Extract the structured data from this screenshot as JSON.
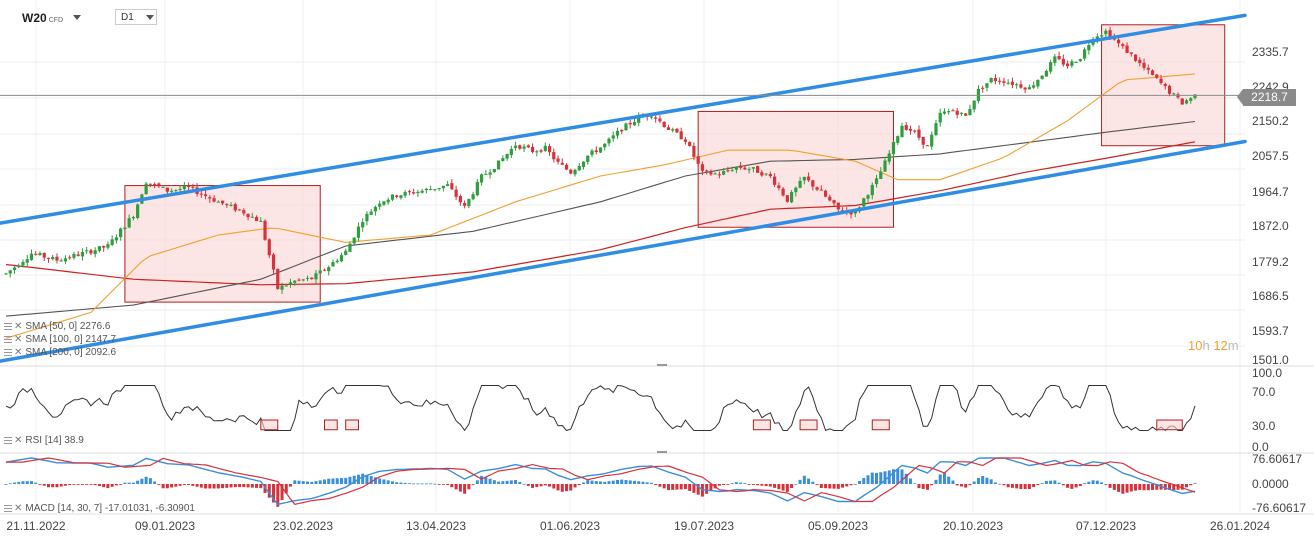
{
  "header": {
    "symbol": "W20",
    "symbol_type": "CFD",
    "timeframe": "D1"
  },
  "current_price": "2218.7",
  "countdown": {
    "h": "10",
    "h_unit": "h",
    "m": "12",
    "m_unit": "m"
  },
  "indicators": {
    "sma50": "SMA [50, 0] 2276.6",
    "sma100": "SMA [100, 0] 2147.7",
    "sma200": "SMA [200, 0] 2092.6",
    "rsi": "RSI [14] 38.9",
    "macd": "MACD [14, 30, 7] -17.01031, -6.30901"
  },
  "colors": {
    "up": "#2e9e3e",
    "down": "#d6323c",
    "channel": "#2f8de4",
    "sma50": "#f0a030",
    "sma100": "#555555",
    "sma200": "#cc2222",
    "rsi": "#333333",
    "macd": "#3a8fd8",
    "signal": "#d6323c",
    "box_fill": "#f9d3d3",
    "box_stroke": "#b02020"
  },
  "chart_data": {
    "type": "candlestick",
    "x_ticks": [
      "21.11.2022",
      "09.01.2023",
      "23.02.2023",
      "13.04.2023",
      "01.06.2023",
      "19.07.2023",
      "05.09.2023",
      "20.10.2023",
      "07.12.2023",
      "26.01.2024"
    ],
    "y_ticks": [
      "2335.7",
      "2242.9",
      "2150.2",
      "2057.5",
      "1964.7",
      "1872.0",
      "1779.2",
      "1686.5",
      "1593.7",
      "1501.0"
    ],
    "ylim": [
      1501.0,
      2428.4
    ],
    "rsi_ticks": [
      "100.0",
      "70.0",
      "30.0",
      "0.0"
    ],
    "macd_ticks": [
      "76.60617",
      "0.0000",
      "-76.60617"
    ],
    "price_path": [
      [
        0,
        1735
      ],
      [
        6,
        1790
      ],
      [
        12,
        1772
      ],
      [
        18,
        1790
      ],
      [
        24,
        1810
      ],
      [
        30,
        1895
      ],
      [
        33,
        1985
      ],
      [
        38,
        1960
      ],
      [
        43,
        1968
      ],
      [
        50,
        1930
      ],
      [
        56,
        1902
      ],
      [
        60,
        1875
      ],
      [
        64,
        1695
      ],
      [
        68,
        1715
      ],
      [
        72,
        1722
      ],
      [
        76,
        1755
      ],
      [
        80,
        1795
      ],
      [
        84,
        1882
      ],
      [
        88,
        1930
      ],
      [
        92,
        1948
      ],
      [
        98,
        1960
      ],
      [
        104,
        1975
      ],
      [
        108,
        1915
      ],
      [
        112,
        1998
      ],
      [
        116,
        2035
      ],
      [
        120,
        2085
      ],
      [
        124,
        2068
      ],
      [
        127,
        2075
      ],
      [
        130,
        2035
      ],
      [
        133,
        2010
      ],
      [
        137,
        2055
      ],
      [
        141,
        2085
      ],
      [
        145,
        2128
      ],
      [
        149,
        2158
      ],
      [
        152,
        2168
      ],
      [
        156,
        2128
      ],
      [
        160,
        2098
      ],
      [
        164,
        2008
      ],
      [
        168,
        2005
      ],
      [
        172,
        2025
      ],
      [
        176,
        2018
      ],
      [
        180,
        1998
      ],
      [
        184,
        1935
      ],
      [
        188,
        1995
      ],
      [
        192,
        1955
      ],
      [
        196,
        1908
      ],
      [
        200,
        1900
      ],
      [
        202,
        1938
      ],
      [
        205,
        1988
      ],
      [
        208,
        2060
      ],
      [
        211,
        2138
      ],
      [
        214,
        2118
      ],
      [
        217,
        2078
      ],
      [
        220,
        2168
      ],
      [
        223,
        2178
      ],
      [
        226,
        2162
      ],
      [
        229,
        2232
      ],
      [
        232,
        2262
      ],
      [
        235,
        2258
      ],
      [
        238,
        2248
      ],
      [
        241,
        2238
      ],
      [
        244,
        2275
      ],
      [
        247,
        2318
      ],
      [
        250,
        2300
      ],
      [
        253,
        2322
      ],
      [
        256,
        2378
      ],
      [
        259,
        2392
      ],
      [
        262,
        2358
      ],
      [
        265,
        2328
      ],
      [
        268,
        2292
      ],
      [
        271,
        2262
      ],
      [
        274,
        2228
      ],
      [
        277,
        2198
      ],
      [
        280,
        2218.7
      ]
    ],
    "sma50_path": [
      [
        0,
        1560
      ],
      [
        20,
        1630
      ],
      [
        33,
        1780
      ],
      [
        50,
        1840
      ],
      [
        63,
        1860
      ],
      [
        80,
        1820
      ],
      [
        100,
        1840
      ],
      [
        120,
        1930
      ],
      [
        140,
        2000
      ],
      [
        155,
        2030
      ],
      [
        170,
        2070
      ],
      [
        185,
        2070
      ],
      [
        200,
        2040
      ],
      [
        210,
        1990
      ],
      [
        220,
        1990
      ],
      [
        235,
        2050
      ],
      [
        250,
        2150
      ],
      [
        263,
        2260
      ],
      [
        280,
        2276.6
      ]
    ],
    "sma100_path": [
      [
        0,
        1620
      ],
      [
        30,
        1650
      ],
      [
        60,
        1720
      ],
      [
        80,
        1810
      ],
      [
        110,
        1850
      ],
      [
        140,
        1930
      ],
      [
        160,
        2000
      ],
      [
        180,
        2040
      ],
      [
        200,
        2045
      ],
      [
        220,
        2060
      ],
      [
        240,
        2090
      ],
      [
        260,
        2120
      ],
      [
        280,
        2147.7
      ]
    ],
    "sma200_path": [
      [
        0,
        1760
      ],
      [
        30,
        1720
      ],
      [
        60,
        1705
      ],
      [
        80,
        1708
      ],
      [
        110,
        1740
      ],
      [
        140,
        1800
      ],
      [
        160,
        1860
      ],
      [
        180,
        1910
      ],
      [
        200,
        1920
      ],
      [
        220,
        1960
      ],
      [
        240,
        2010
      ],
      [
        260,
        2050
      ],
      [
        280,
        2092.6
      ]
    ],
    "channel_upper": [
      [
        0,
        1872
      ],
      [
        280,
        2418
      ]
    ],
    "channel_lower": [
      [
        0,
        1498
      ],
      [
        280,
        2075
      ]
    ],
    "boxes": [
      {
        "x0": 28,
        "x1": 74,
        "y0": 1658,
        "y1": 1974
      },
      {
        "x0": 163,
        "x1": 209,
        "y0": 1861,
        "y1": 2175
      },
      {
        "x0": 258,
        "x1": 287,
        "y0": 2082,
        "y1": 2410
      }
    ],
    "rsi_boxes": [
      {
        "x0": 60,
        "x1": 64
      },
      {
        "x0": 75,
        "x1": 78
      },
      {
        "x0": 80,
        "x1": 83
      },
      {
        "x0": 176,
        "x1": 180
      },
      {
        "x0": 187,
        "x1": 191
      },
      {
        "x0": 204,
        "x1": 208
      },
      {
        "x0": 271,
        "x1": 277
      }
    ],
    "n_bars": 281
  }
}
